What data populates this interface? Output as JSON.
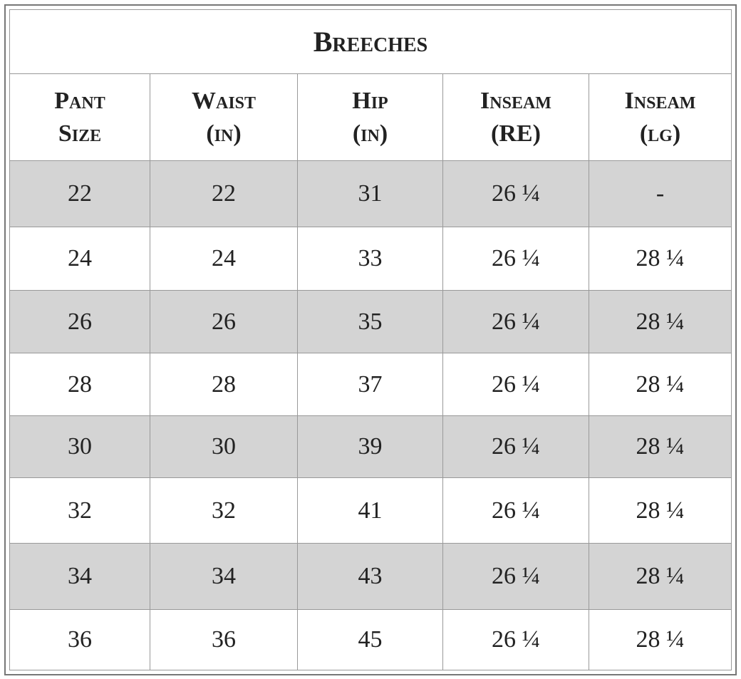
{
  "header": {
    "title": "Breeches"
  },
  "table": {
    "columns": [
      [
        "Pant",
        "Size"
      ],
      [
        "Waist",
        "(in)"
      ],
      [
        "Hip",
        "(in)"
      ],
      [
        "Inseam",
        "(RE)"
      ],
      [
        "Inseam",
        "(lg)"
      ]
    ],
    "rows": [
      [
        "22",
        "22",
        "31",
        "26 ¼",
        "-"
      ],
      [
        "24",
        "24",
        "33",
        "26 ¼",
        "28 ¼"
      ],
      [
        "26",
        "26",
        "35",
        "26 ¼",
        "28 ¼"
      ],
      [
        "28",
        "28",
        "37",
        "26 ¼",
        "28 ¼"
      ],
      [
        "30",
        "30",
        "39",
        "26 ¼",
        "28 ¼"
      ],
      [
        "32",
        "32",
        "41",
        "26 ¼",
        "28 ¼"
      ],
      [
        "34",
        "34",
        "43",
        "26 ¼",
        "28 ¼"
      ],
      [
        "36",
        "36",
        "45",
        "26 ¼",
        "28 ¼"
      ]
    ]
  }
}
